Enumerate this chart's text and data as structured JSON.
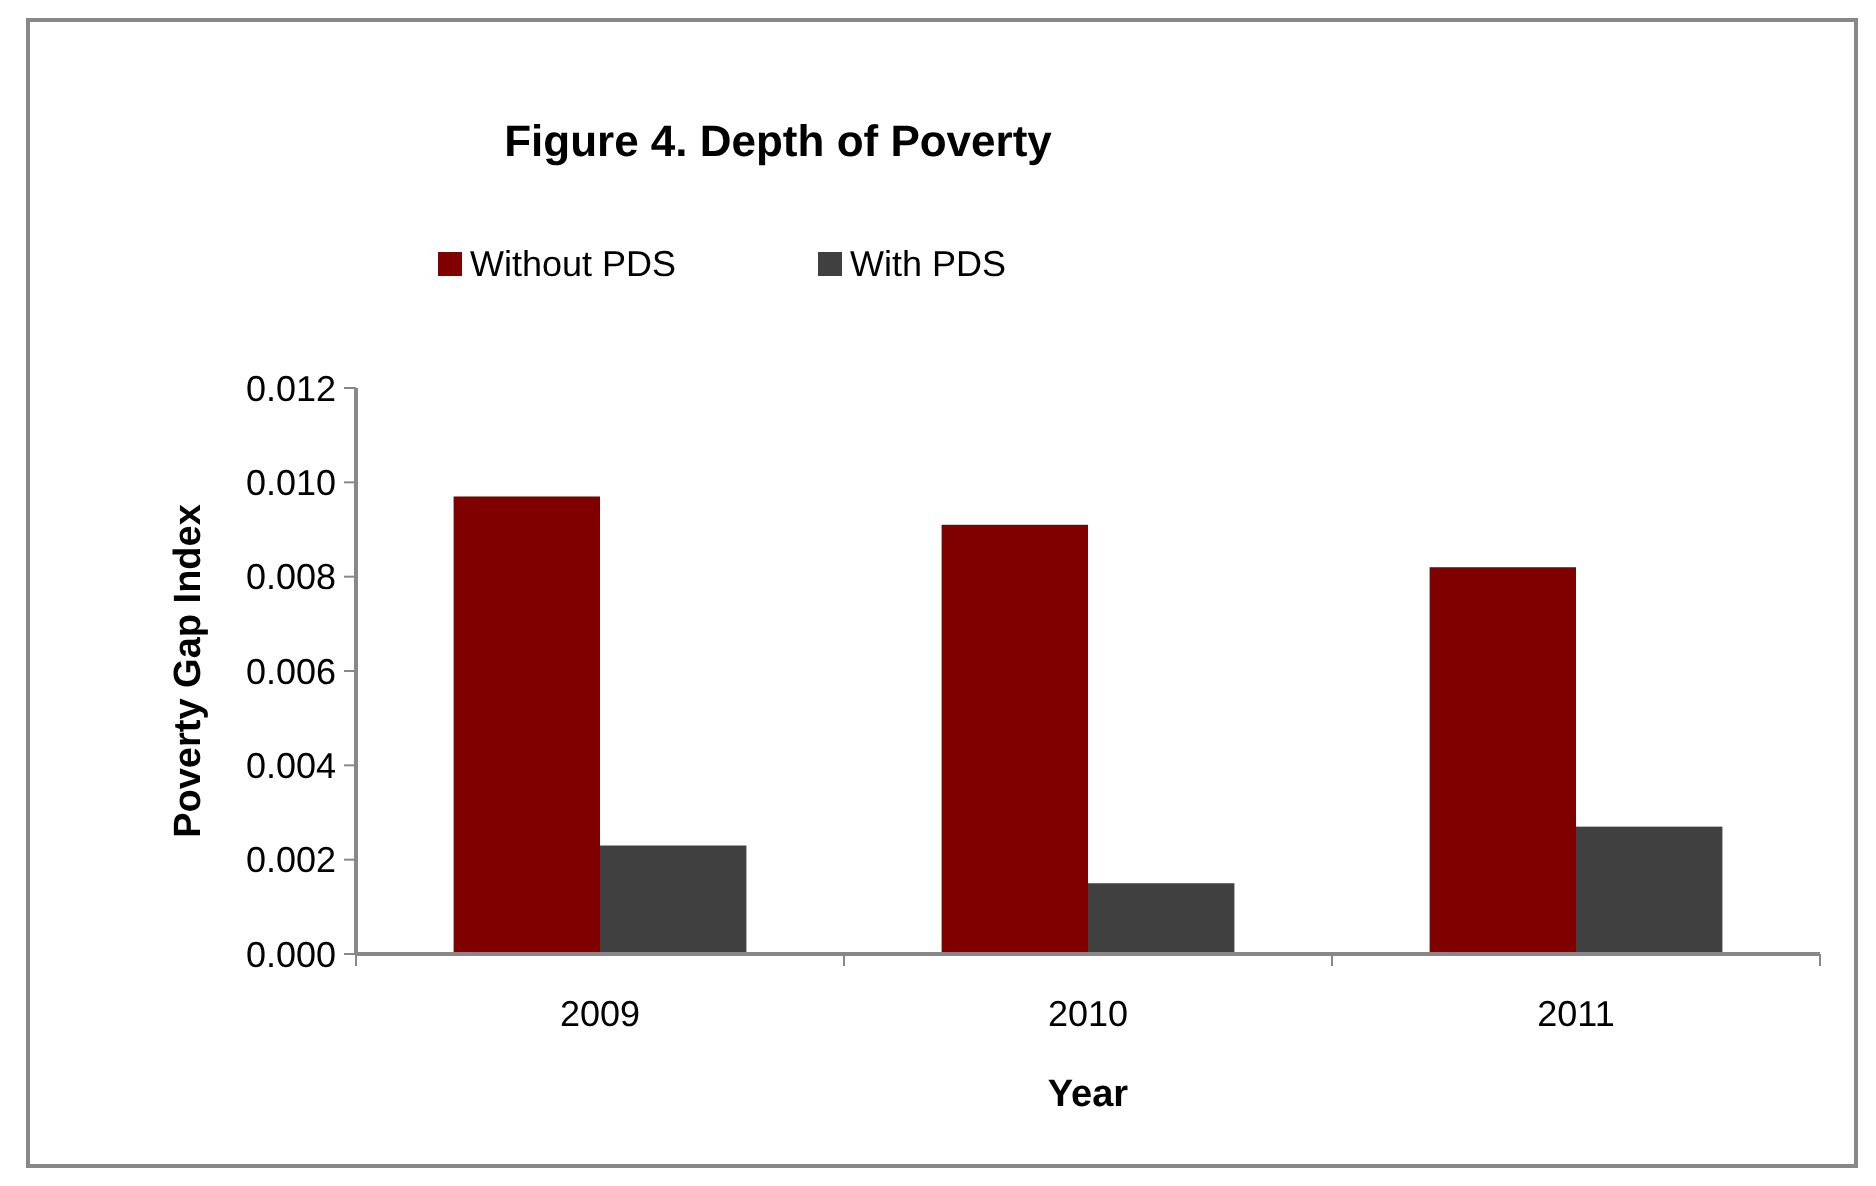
{
  "chart_data": {
    "type": "bar",
    "title": "Figure 4. Depth of Poverty",
    "xlabel": "Year",
    "ylabel": "Poverty Gap Index",
    "categories": [
      "2009",
      "2010",
      "2011"
    ],
    "series": [
      {
        "name": "Without PDS",
        "color": "#800000",
        "values": [
          0.0097,
          0.0091,
          0.0082
        ]
      },
      {
        "name": "With PDS",
        "color": "#404040",
        "values": [
          0.0023,
          0.0015,
          0.0027
        ]
      }
    ],
    "ylim": [
      0,
      0.012
    ],
    "yticks": [
      {
        "value": 0,
        "label": "0.000"
      },
      {
        "value": 0.002,
        "label": "0.002"
      },
      {
        "value": 0.004,
        "label": "0.004"
      },
      {
        "value": 0.006,
        "label": "0.006"
      },
      {
        "value": 0.008,
        "label": "0.008"
      },
      {
        "value": 0.01,
        "label": "0.010"
      },
      {
        "value": 0.012,
        "label": "0.012"
      }
    ],
    "grid": false,
    "legend": "top"
  }
}
